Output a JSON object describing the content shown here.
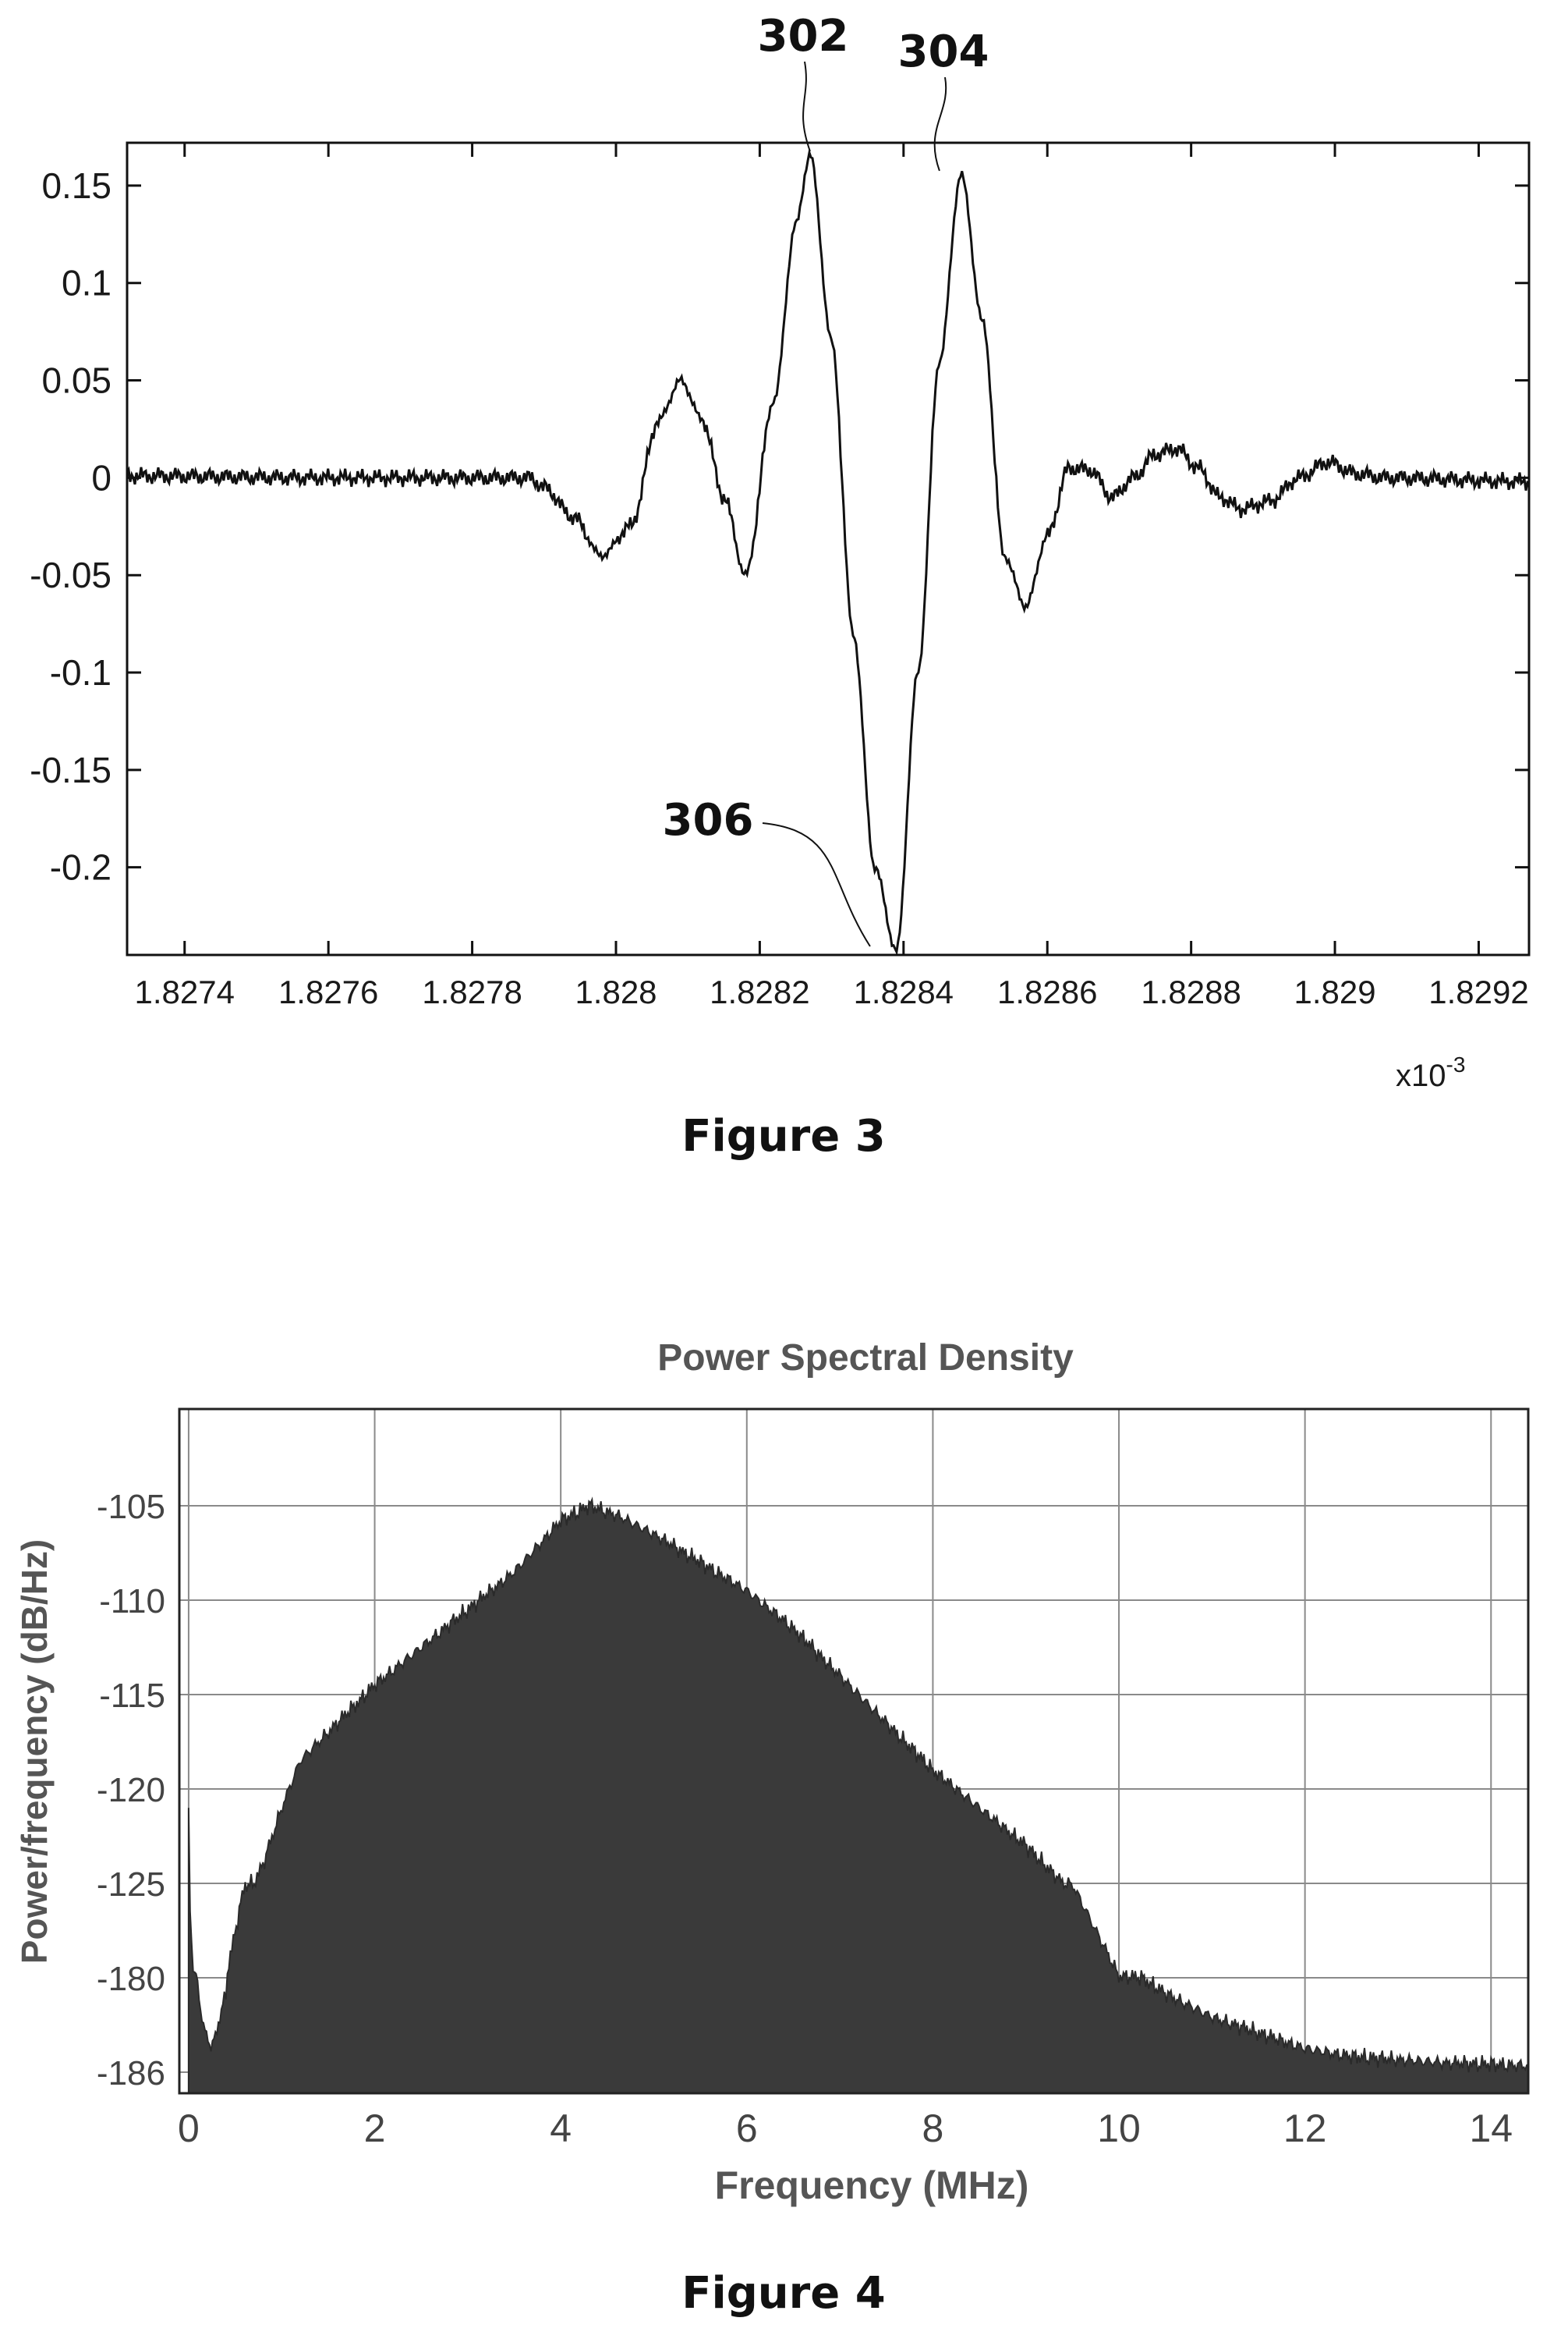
{
  "figures": {
    "fig3_caption": "Figure 3",
    "fig4_caption": "Figure 4"
  },
  "chart_data": [
    {
      "type": "line",
      "title": "",
      "xlabel": "",
      "ylabel": "",
      "x_exponent_label": "x10",
      "x_exponent_power": "-3",
      "xlim": [
        1.82732,
        1.82927
      ],
      "ylim": [
        -0.245,
        0.172
      ],
      "x_ticks": [
        "1.8274",
        "1.8276",
        "1.8278",
        "1.828",
        "1.8282",
        "1.8284",
        "1.8286",
        "1.8288",
        "1.829",
        "1.8292"
      ],
      "y_ticks": [
        "0.15",
        "0.1",
        "0.05",
        "0",
        "-0.05",
        "-0.1",
        "-0.15",
        "-0.2"
      ],
      "grid": false,
      "line_color": "#111111",
      "series": [
        {
          "x": [
            1.82732,
            1.8276,
            1.82788,
            1.8279,
            1.82794,
            1.82798,
            1.82802,
            1.82806,
            1.82809,
            1.82812,
            1.82815,
            1.82818,
            1.82822,
            1.82825,
            1.82827,
            1.8283,
            1.82833,
            1.82836,
            1.82839,
            1.82842,
            1.82845,
            1.82848,
            1.82851,
            1.82854,
            1.82857,
            1.8286,
            1.82863,
            1.82866,
            1.82869,
            1.82872,
            1.82875,
            1.82878,
            1.82881,
            1.82884,
            1.82887,
            1.82891,
            1.82895,
            1.82899,
            1.82903,
            1.82907,
            1.82927
          ],
          "y": [
            0.001,
            0.0,
            0.0,
            -0.005,
            -0.02,
            -0.04,
            -0.025,
            0.03,
            0.05,
            0.03,
            -0.01,
            -0.05,
            0.04,
            0.13,
            0.166,
            0.07,
            -0.08,
            -0.2,
            -0.243,
            -0.1,
            0.06,
            0.156,
            0.08,
            -0.04,
            -0.066,
            -0.03,
            0.005,
            0.004,
            -0.01,
            0.0,
            0.012,
            0.015,
            0.005,
            -0.01,
            -0.016,
            -0.012,
            0.0,
            0.008,
            0.002,
            0.0,
            -0.002
          ]
        }
      ],
      "annotations": [
        {
          "label": "302",
          "x": 1.82827,
          "y": 0.166
        },
        {
          "label": "304",
          "x": 1.82845,
          "y": 0.156
        },
        {
          "label": "306",
          "x": 1.82836,
          "y": -0.243
        }
      ]
    },
    {
      "type": "area",
      "title": "Power Spectral Density",
      "xlabel": "Frequency (MHz)",
      "ylabel": "Power/frequency (dB/Hz)",
      "xlim": [
        -0.1,
        14.4
      ],
      "y_axis_note": "tick labels printed as shown; values below are in the printed tick scale",
      "x_ticks": [
        "0",
        "2",
        "4",
        "6",
        "8",
        "10",
        "12",
        "14"
      ],
      "y_ticks": [
        "-105",
        "-110",
        "-115",
        "-120",
        "-125",
        "-180",
        "-186"
      ],
      "grid": true,
      "fill_color": "#3a3a3a",
      "series": [
        {
          "x": [
            0.0,
            0.05,
            0.15,
            0.25,
            0.4,
            0.6,
            0.8,
            1.0,
            1.2,
            1.5,
            2.0,
            2.5,
            3.0,
            3.5,
            4.0,
            4.3,
            4.6,
            5.0,
            5.5,
            6.0,
            6.5,
            7.0,
            7.5,
            8.0,
            8.5,
            9.0,
            9.5,
            10.0,
            10.5,
            11.0,
            11.5,
            12.0,
            12.5,
            13.0,
            13.5,
            14.0,
            14.4
          ],
          "y": [
            -121.0,
            -178.0,
            -183.0,
            -184.5,
            -181.0,
            -126.0,
            -124.0,
            -121.0,
            -118.5,
            -117.0,
            -114.5,
            -112.5,
            -110.5,
            -108.5,
            -105.8,
            -105.0,
            -105.5,
            -106.5,
            -108.0,
            -109.5,
            -111.5,
            -114.0,
            -116.5,
            -119.0,
            -121.0,
            -123.0,
            -125.5,
            -179.0,
            -181.0,
            -182.5,
            -183.5,
            -184.5,
            -185.0,
            -185.2,
            -185.4,
            -185.5,
            -185.6
          ]
        }
      ]
    }
  ]
}
